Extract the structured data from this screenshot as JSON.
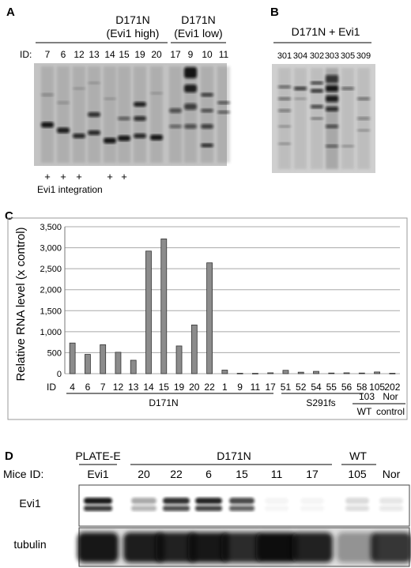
{
  "panel_a": {
    "letter": "A",
    "group1_title_line1": "D171N",
    "group1_title_line2": "(Evi1 high)",
    "group2_title_line1": "D171N",
    "group2_title_line2": "(Evi1 low)",
    "id_label": "ID:",
    "lane_ids": [
      "7",
      "6",
      "12",
      "13",
      "14",
      "15",
      "19",
      "20",
      "17",
      "9",
      "10",
      "11"
    ],
    "integration_marks": [
      "+",
      "+",
      "+",
      "",
      "+",
      "+",
      "",
      "",
      "",
      "",
      "",
      ""
    ],
    "integration_label": "Evi1 integration"
  },
  "panel_b": {
    "letter": "B",
    "title": "D171N + Evi1",
    "lane_ids": [
      "301",
      "304",
      "302",
      "303",
      "305",
      "309"
    ]
  },
  "panel_c": {
    "letter": "C",
    "id_label": "ID",
    "group_labels": {
      "d171n": "D171N",
      "s291fs": "S291fs",
      "wt_id": "103",
      "wt": "WT",
      "nor": "Nor",
      "control": "control"
    }
  },
  "panel_d": {
    "letter": "D",
    "header_plate": "PLATE-E",
    "header_d171n": "D171N",
    "header_wt": "WT",
    "mice_id_label": "Mice ID:",
    "lane_ids": [
      "Evi1",
      "20",
      "22",
      "6",
      "15",
      "11",
      "17",
      "105",
      "Nor"
    ],
    "row_labels": [
      "Evi1",
      "tubulin"
    ]
  },
  "chart_data": {
    "type": "bar",
    "title": "",
    "xlabel": "ID",
    "ylabel": "Relative RNA level (x control)",
    "ylim": [
      0,
      3500
    ],
    "yticks": [
      0,
      500,
      1000,
      1500,
      2000,
      2500,
      3000,
      3500
    ],
    "ytick_labels": [
      "0",
      "500",
      "1,000",
      "1,500",
      "2,000",
      "2,500",
      "3,000",
      "3,500"
    ],
    "grid": true,
    "bar_color": "#8c8c8c",
    "categories": [
      "4",
      "6",
      "7",
      "12",
      "13",
      "14",
      "15",
      "19",
      "20",
      "22",
      "1",
      "9",
      "11",
      "17",
      "51",
      "52",
      "54",
      "55",
      "56",
      "58",
      "105",
      "202"
    ],
    "values": [
      730,
      460,
      690,
      510,
      320,
      2920,
      3210,
      660,
      1160,
      2640,
      85,
      10,
      8,
      20,
      80,
      35,
      55,
      15,
      20,
      15,
      40,
      10
    ]
  }
}
